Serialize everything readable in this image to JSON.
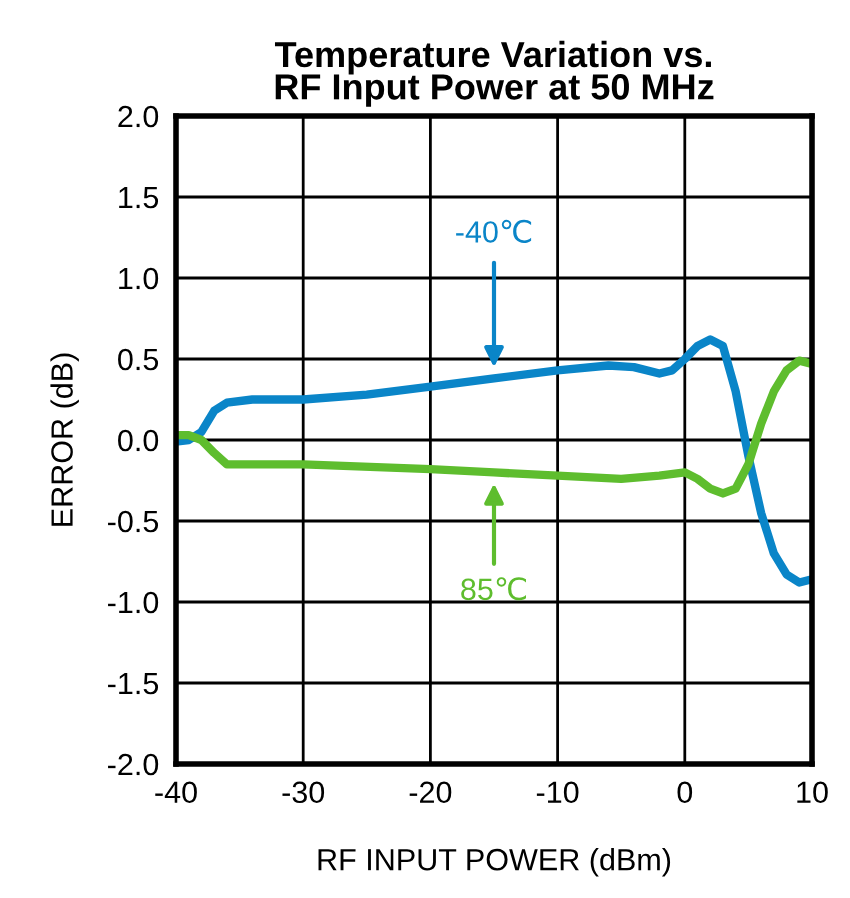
{
  "chart_data": {
    "type": "line",
    "title": "Temperature Variation vs.\nRF Input Power at 50 MHz",
    "xlabel": "RF INPUT POWER (dBm)",
    "ylabel": "ERROR (dB)",
    "x": [
      -40,
      -39,
      -38,
      -37,
      -36,
      -34,
      -30,
      -25,
      -20,
      -15,
      -10,
      -6,
      -4,
      -2,
      -1,
      0,
      1,
      2,
      3,
      4,
      5,
      6,
      7,
      8,
      9,
      10
    ],
    "series": [
      {
        "color": "#0a85c8",
        "values": [
          -0.01,
          0,
          0.05,
          0.18,
          0.23,
          0.25,
          0.25,
          0.28,
          0.33,
          0.38,
          0.43,
          0.46,
          0.45,
          0.41,
          0.43,
          0.5,
          0.58,
          0.62,
          0.58,
          0.3,
          -0.1,
          -0.45,
          -0.7,
          -0.83,
          -0.88,
          -0.86
        ]
      },
      {
        "color": "#5ebd2e",
        "x": [
          -40,
          -39,
          -38,
          -37,
          -36,
          -34,
          -30,
          -20,
          -15,
          -10,
          -5,
          -2,
          0,
          1,
          2,
          3,
          4,
          5,
          6,
          7,
          8,
          9,
          10
        ],
        "values": [
          0.03,
          0.03,
          0,
          -0.08,
          -0.15,
          -0.15,
          -0.15,
          -0.18,
          -0.2,
          -0.22,
          -0.24,
          -0.22,
          -0.2,
          -0.24,
          -0.3,
          -0.33,
          -0.3,
          -0.15,
          0.1,
          0.3,
          0.43,
          0.49,
          0.47
        ]
      }
    ],
    "annotations": [
      {
        "text": "-40℃",
        "x": -15,
        "y": 0.38
      },
      {
        "text": "85℃",
        "x": -15,
        "y": -0.2
      }
    ],
    "xlim": [
      -40,
      10
    ],
    "xticks": [
      -40,
      -30,
      -20,
      -10,
      0,
      10
    ],
    "ylim": [
      -2.0,
      2.0
    ],
    "yticks": [
      {
        "value": -2.0,
        "label": "-2.0"
      },
      {
        "value": -1.5,
        "label": "-1.5"
      },
      {
        "value": -1.0,
        "label": "-1.0"
      },
      {
        "value": -0.5,
        "label": "-0.5"
      },
      {
        "value": 0.0,
        "label": "0.0"
      },
      {
        "value": 0.5,
        "label": "0.5"
      },
      {
        "value": 1.0,
        "label": "1.0"
      },
      {
        "value": 1.5,
        "label": "1.5"
      },
      {
        "value": 2.0,
        "label": "2.0"
      }
    ],
    "grid": true
  }
}
